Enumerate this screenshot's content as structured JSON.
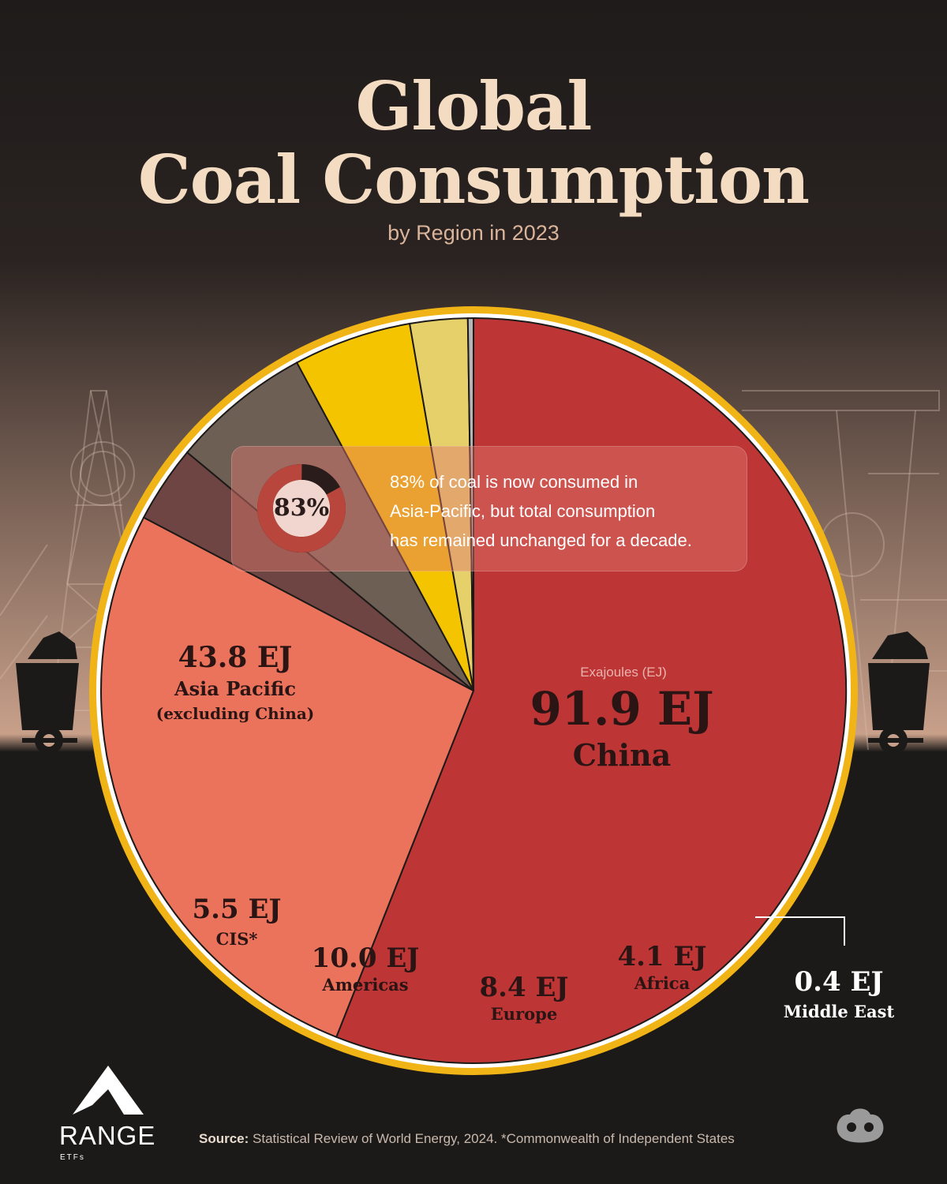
{
  "header": {
    "title_line1": "Global",
    "title_line2": "Coal Consumption",
    "subtitle": "by Region in 2023"
  },
  "callout": {
    "percent_label": "83%",
    "percent_value": 83,
    "lines": [
      "83% of coal is now consumed in",
      "Asia-Pacific, but total consumption",
      "has remained unchanged for a decade."
    ]
  },
  "chart_data": {
    "type": "pie",
    "title": "Global Coal Consumption",
    "subtitle": "by Region in 2023",
    "unit_label": "Exajoules (EJ)",
    "categories": [
      "China",
      "Asia Pacific (excluding China)",
      "CIS*",
      "Americas",
      "Europe",
      "Africa",
      "Middle East"
    ],
    "values": [
      91.9,
      43.8,
      5.5,
      10.0,
      8.4,
      4.1,
      0.4
    ],
    "value_labels": [
      "91.9 EJ",
      "43.8 EJ",
      "5.5 EJ",
      "10.0 EJ",
      "8.4 EJ",
      "4.1 EJ",
      "0.4 EJ"
    ],
    "name_lines": [
      [
        "China"
      ],
      [
        "Asia Pacific",
        "(excluding China)"
      ],
      [
        "CIS*"
      ],
      [
        "Americas"
      ],
      [
        "Europe"
      ],
      [
        "Africa"
      ],
      [
        "Middle East"
      ]
    ],
    "colors": [
      "#bd3535",
      "#ec735b",
      "#6e4542",
      "#6e5f55",
      "#f5c400",
      "#e6d06a",
      "#b6b6b6"
    ]
  },
  "footer": {
    "source_label": "Source:",
    "source_text": " Statistical Review of World Energy, 2024. *Commonwealth of Independent States",
    "logo_word": "RANGE",
    "logo_sub": "ETFs"
  },
  "colors": {
    "background": "#1c1a19",
    "title": "#f3dcc2",
    "ring_outer": "#f1b416",
    "ring_inner": "#ffffff"
  }
}
